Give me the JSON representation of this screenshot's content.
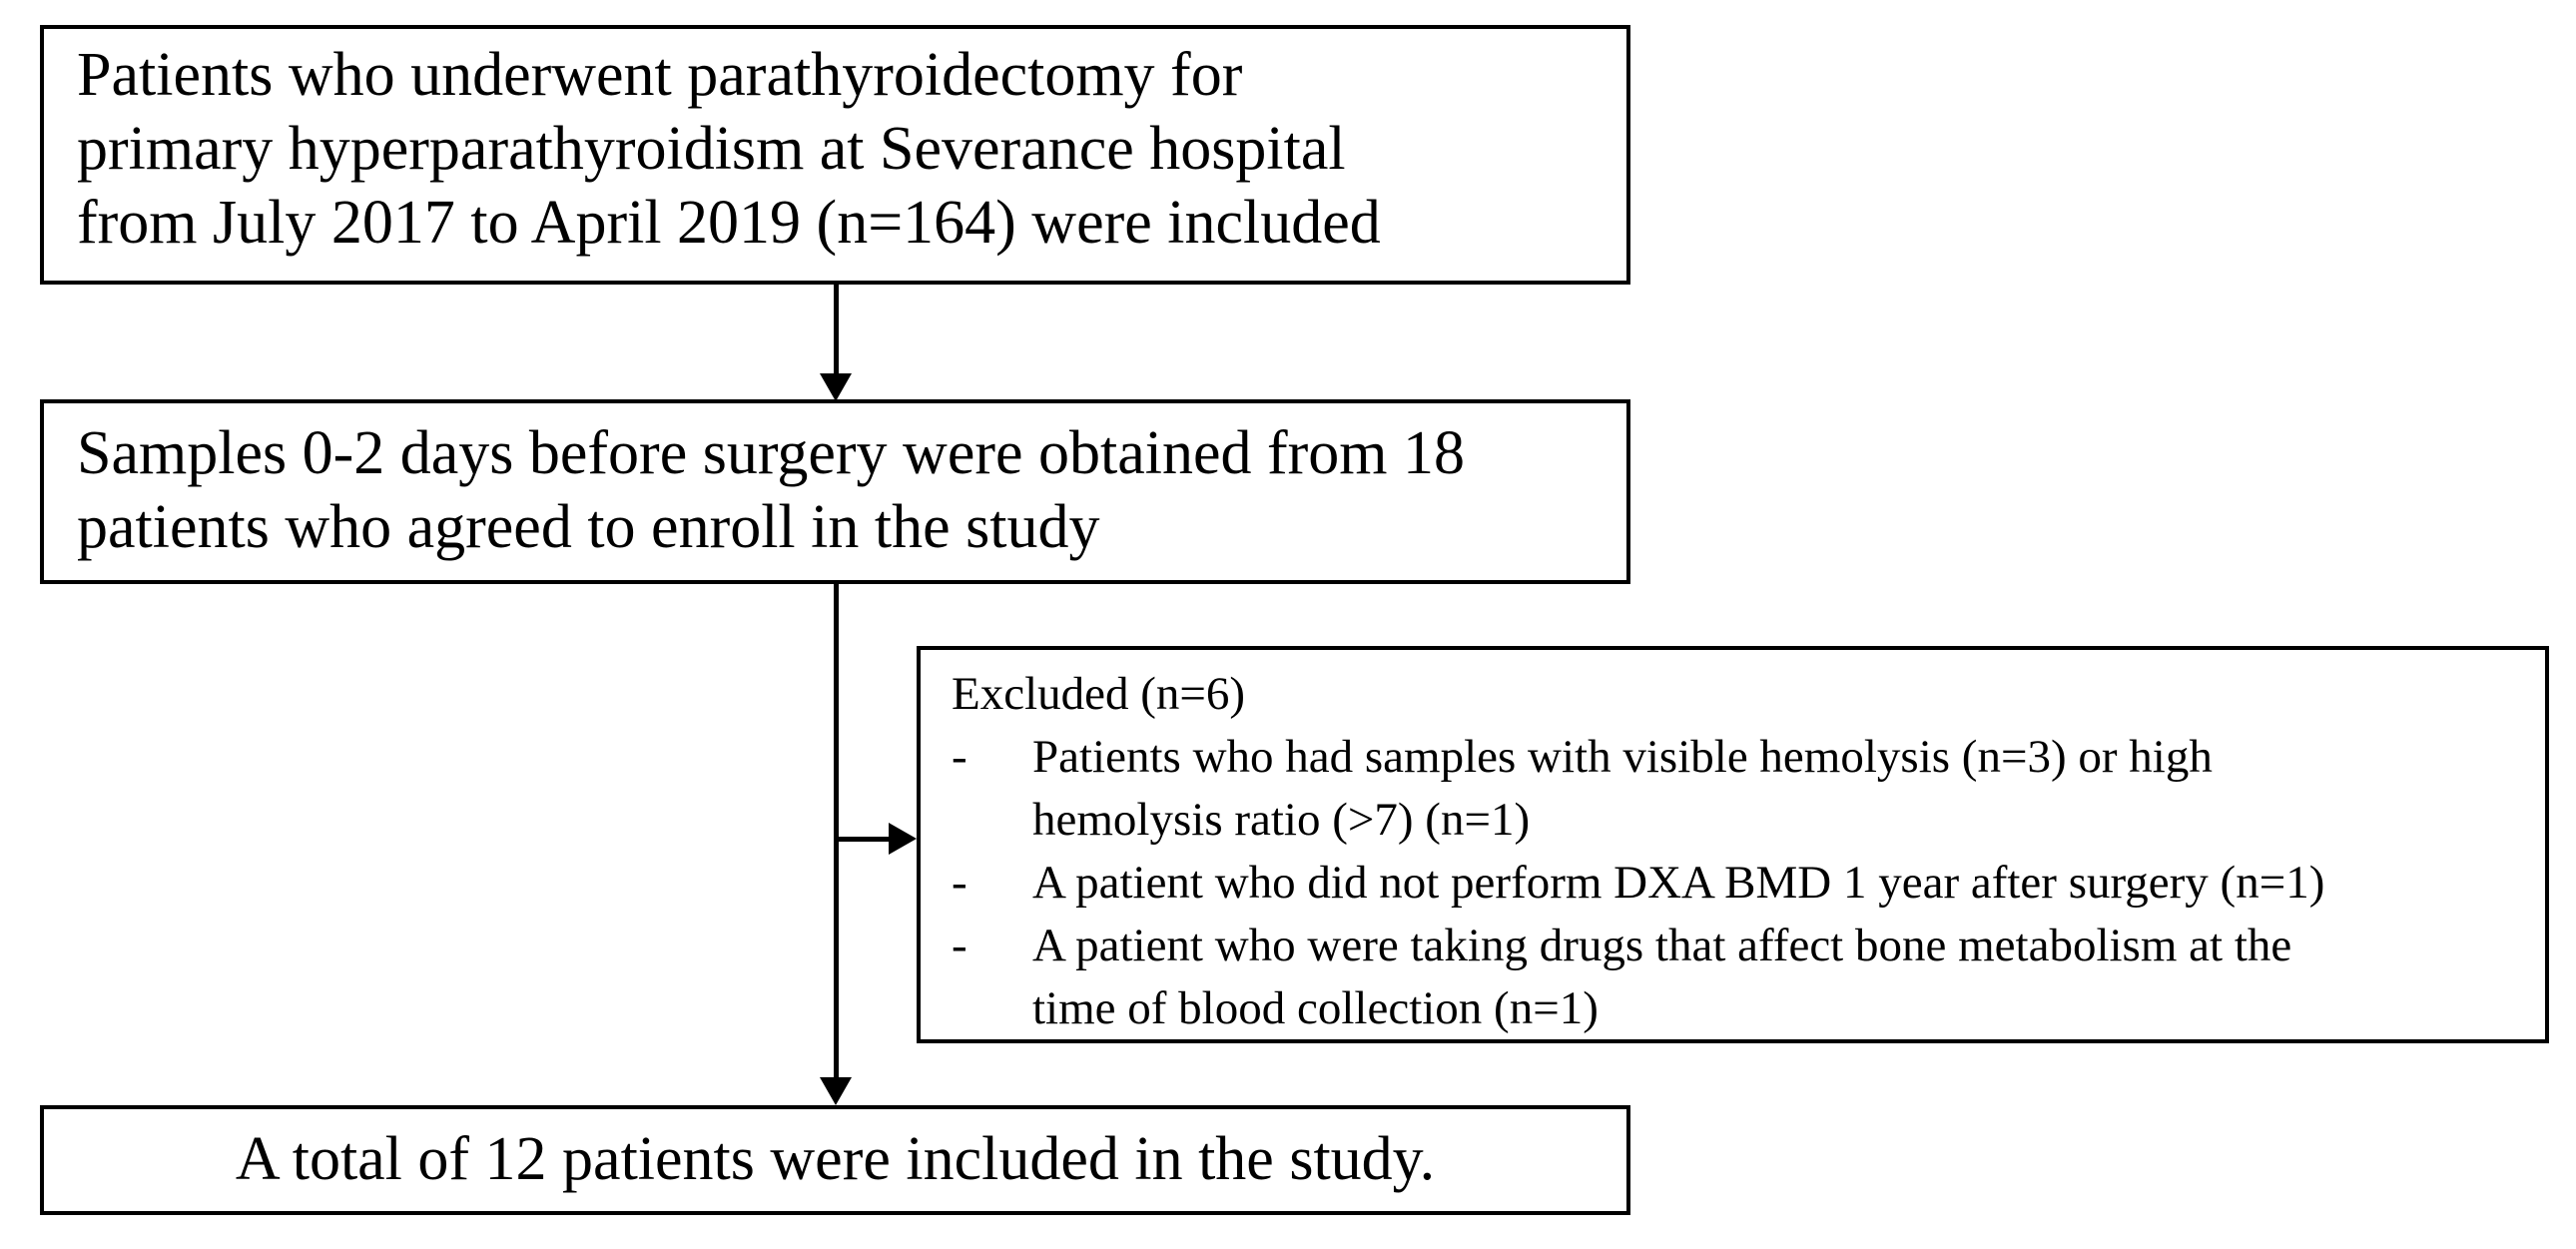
{
  "flowchart": {
    "colors": {
      "background": "#ffffff",
      "box_border": "#000000",
      "text": "#000000",
      "arrow": "#000000"
    },
    "box_included": {
      "lines": [
        "Patients who underwent parathyroidectomy for",
        "primary hyperparathyroidism at Severance hospital",
        "from July 2017 to April 2019 (n=164) were included"
      ]
    },
    "box_samples": {
      "lines": [
        "Samples 0-2 days before surgery were obtained from 18",
        "patients who agreed to enroll in the study"
      ]
    },
    "box_excluded": {
      "title": "Excluded (n=6)",
      "bullet_marker": "-",
      "items": [
        {
          "lines": [
            "Patients who had samples with visible hemolysis (n=3) or high",
            "hemolysis ratio (>7) (n=1)"
          ]
        },
        {
          "lines": [
            "A patient who did not perform DXA BMD 1 year after surgery (n=1)"
          ]
        },
        {
          "lines": [
            "A patient who were taking drugs that affect bone metabolism at the",
            "time of blood collection (n=1)"
          ]
        }
      ]
    },
    "box_final": {
      "text": "A total of 12 patients were included in the study."
    }
  }
}
